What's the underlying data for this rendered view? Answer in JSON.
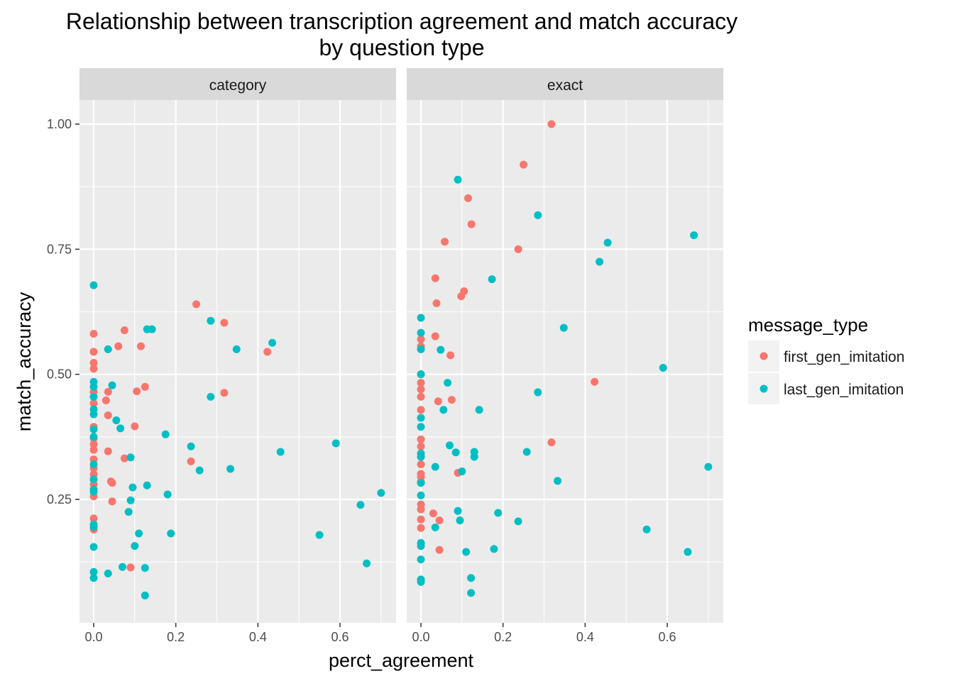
{
  "title_line1": "Relationship between transcription agreement and match accuracy",
  "title_line2": "by question type",
  "xlabel": "perct_agreement",
  "ylabel": "match_accuracy",
  "legend": {
    "title": "message_type",
    "entries": [
      "first_gen_imitation",
      "last_gen_imitation"
    ]
  },
  "colors": {
    "first_gen_imitation": "#F8766D",
    "last_gen_imitation": "#00BFC4",
    "panel_bg": "#EBEBEB",
    "strip_bg": "#D9D9D9"
  },
  "chart_data": {
    "type": "scatter",
    "x_ticks": [
      "0.0",
      "0.2",
      "0.4",
      "0.6"
    ],
    "y_ticks": [
      "0.25",
      "0.50",
      "0.75",
      "1.00"
    ],
    "xlim": [
      -0.035,
      0.735
    ],
    "ylim": [
      0.025,
      1.05
    ],
    "grid": true,
    "legend_position": "right",
    "panels": [
      {
        "name": "category",
        "series": [
          {
            "name": "first_gen_imitation",
            "points": [
              [
                0,
                0.581
              ],
              [
                0,
                0.545
              ],
              [
                0,
                0.523
              ],
              [
                0,
                0.511
              ],
              [
                0,
                0.465
              ],
              [
                0,
                0.442
              ],
              [
                0,
                0.395
              ],
              [
                0,
                0.372
              ],
              [
                0,
                0.36
              ],
              [
                0,
                0.349
              ],
              [
                0,
                0.33
              ],
              [
                0,
                0.312
              ],
              [
                0,
                0.3
              ],
              [
                0,
                0.29
              ],
              [
                0,
                0.28
              ],
              [
                0,
                0.256
              ],
              [
                0,
                0.212
              ],
              [
                0,
                0.19
              ],
              [
                0.03,
                0.448
              ],
              [
                0.035,
                0.465
              ],
              [
                0.035,
                0.418
              ],
              [
                0.035,
                0.346
              ],
              [
                0.042,
                0.286
              ],
              [
                0.045,
                0.246
              ],
              [
                0.045,
                0.283
              ],
              [
                0.06,
                0.556
              ],
              [
                0.075,
                0.588
              ],
              [
                0.075,
                0.332
              ],
              [
                0.09,
                0.114
              ],
              [
                0.1,
                0.396
              ],
              [
                0.105,
                0.466
              ],
              [
                0.115,
                0.556
              ],
              [
                0.125,
                0.475
              ],
              [
                0.237,
                0.326
              ],
              [
                0.25,
                0.64
              ],
              [
                0.318,
                0.603
              ],
              [
                0.318,
                0.463
              ],
              [
                0.423,
                0.545
              ]
            ]
          },
          {
            "name": "last_gen_imitation",
            "points": [
              [
                0,
                0.678
              ],
              [
                0,
                0.485
              ],
              [
                0,
                0.475
              ],
              [
                0,
                0.455
              ],
              [
                0,
                0.43
              ],
              [
                0,
                0.42
              ],
              [
                0,
                0.39
              ],
              [
                0,
                0.375
              ],
              [
                0,
                0.32
              ],
              [
                0,
                0.29
              ],
              [
                0,
                0.27
              ],
              [
                0,
                0.265
              ],
              [
                0,
                0.2
              ],
              [
                0,
                0.195
              ],
              [
                0,
                0.155
              ],
              [
                0,
                0.105
              ],
              [
                0,
                0.093
              ],
              [
                0.035,
                0.55
              ],
              [
                0.035,
                0.102
              ],
              [
                0.045,
                0.478
              ],
              [
                0.055,
                0.408
              ],
              [
                0.065,
                0.392
              ],
              [
                0.07,
                0.115
              ],
              [
                0.085,
                0.225
              ],
              [
                0.09,
                0.334
              ],
              [
                0.09,
                0.248
              ],
              [
                0.095,
                0.274
              ],
              [
                0.1,
                0.157
              ],
              [
                0.11,
                0.182
              ],
              [
                0.125,
                0.113
              ],
              [
                0.125,
                0.058
              ],
              [
                0.13,
                0.59
              ],
              [
                0.13,
                0.278
              ],
              [
                0.142,
                0.59
              ],
              [
                0.175,
                0.38
              ],
              [
                0.18,
                0.26
              ],
              [
                0.188,
                0.182
              ],
              [
                0.237,
                0.356
              ],
              [
                0.258,
                0.308
              ],
              [
                0.285,
                0.607
              ],
              [
                0.285,
                0.455
              ],
              [
                0.333,
                0.311
              ],
              [
                0.348,
                0.55
              ],
              [
                0.435,
                0.563
              ],
              [
                0.455,
                0.345
              ],
              [
                0.55,
                0.179
              ],
              [
                0.59,
                0.362
              ],
              [
                0.65,
                0.239
              ],
              [
                0.665,
                0.122
              ],
              [
                0.7,
                0.263
              ]
            ]
          }
        ]
      },
      {
        "name": "exact",
        "series": [
          {
            "name": "first_gen_imitation",
            "points": [
              [
                0,
                0.57
              ],
              [
                0,
                0.556
              ],
              [
                0,
                0.483
              ],
              [
                0,
                0.47
              ],
              [
                0,
                0.455
              ],
              [
                0,
                0.429
              ],
              [
                0,
                0.37
              ],
              [
                0,
                0.356
              ],
              [
                0,
                0.335
              ],
              [
                0,
                0.32
              ],
              [
                0,
                0.301
              ],
              [
                0,
                0.295
              ],
              [
                0,
                0.285
              ],
              [
                0,
                0.24
              ],
              [
                0,
                0.23
              ],
              [
                0,
                0.21
              ],
              [
                0,
                0.193
              ],
              [
                0.03,
                0.222
              ],
              [
                0.035,
                0.692
              ],
              [
                0.035,
                0.576
              ],
              [
                0.038,
                0.642
              ],
              [
                0.042,
                0.446
              ],
              [
                0.045,
                0.208
              ],
              [
                0.045,
                0.149
              ],
              [
                0.058,
                0.765
              ],
              [
                0.072,
                0.538
              ],
              [
                0.075,
                0.449
              ],
              [
                0.09,
                0.303
              ],
              [
                0.098,
                0.656
              ],
              [
                0.105,
                0.666
              ],
              [
                0.115,
                0.852
              ],
              [
                0.123,
                0.8
              ],
              [
                0.237,
                0.75
              ],
              [
                0.25,
                0.919
              ],
              [
                0.318,
                1.0
              ],
              [
                0.318,
                0.364
              ],
              [
                0.423,
                0.485
              ]
            ]
          },
          {
            "name": "last_gen_imitation",
            "points": [
              [
                0,
                0.613
              ],
              [
                0,
                0.583
              ],
              [
                0,
                0.55
              ],
              [
                0,
                0.5
              ],
              [
                0,
                0.5
              ],
              [
                0,
                0.413
              ],
              [
                0,
                0.395
              ],
              [
                0,
                0.342
              ],
              [
                0,
                0.335
              ],
              [
                0,
                0.283
              ],
              [
                0,
                0.258
              ],
              [
                0,
                0.163
              ],
              [
                0,
                0.157
              ],
              [
                0,
                0.13
              ],
              [
                0,
                0.09
              ],
              [
                0,
                0.085
              ],
              [
                0.035,
                0.315
              ],
              [
                0.035,
                0.194
              ],
              [
                0.048,
                0.549
              ],
              [
                0.055,
                0.429
              ],
              [
                0.065,
                0.483
              ],
              [
                0.07,
                0.358
              ],
              [
                0.085,
                0.344
              ],
              [
                0.09,
                0.889
              ],
              [
                0.09,
                0.227
              ],
              [
                0.095,
                0.208
              ],
              [
                0.1,
                0.306
              ],
              [
                0.11,
                0.145
              ],
              [
                0.122,
                0.093
              ],
              [
                0.122,
                0.063
              ],
              [
                0.13,
                0.345
              ],
              [
                0.13,
                0.335
              ],
              [
                0.142,
                0.429
              ],
              [
                0.173,
                0.69
              ],
              [
                0.178,
                0.151
              ],
              [
                0.188,
                0.223
              ],
              [
                0.237,
                0.206
              ],
              [
                0.258,
                0.345
              ],
              [
                0.285,
                0.818
              ],
              [
                0.285,
                0.464
              ],
              [
                0.333,
                0.287
              ],
              [
                0.348,
                0.593
              ],
              [
                0.435,
                0.725
              ],
              [
                0.455,
                0.763
              ],
              [
                0.55,
                0.19
              ],
              [
                0.59,
                0.513
              ],
              [
                0.65,
                0.145
              ],
              [
                0.665,
                0.778
              ],
              [
                0.7,
                0.315
              ]
            ]
          }
        ]
      }
    ]
  }
}
